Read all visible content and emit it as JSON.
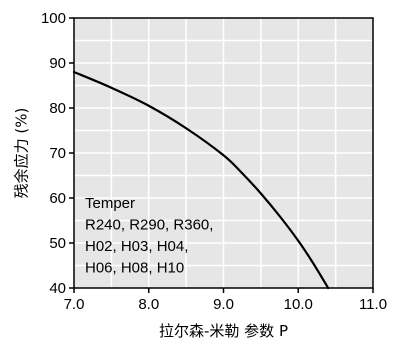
{
  "chart_data": {
    "type": "line",
    "xlabel": "拉尔森-米勒 参数 P",
    "ylabel": "残余应力 (%)",
    "xlim": [
      7.0,
      11.0
    ],
    "ylim": [
      40,
      100
    ],
    "x_ticks": [
      "7.0",
      "8.0",
      "9.0",
      "10.0",
      "11.0"
    ],
    "y_ticks": [
      "40",
      "50",
      "60",
      "70",
      "80",
      "90",
      "100"
    ],
    "x_grid_step": 0.5,
    "y_grid_step": 5,
    "grid": true,
    "legend_lines": [
      "Temper",
      "R240, R290, R360,",
      "H02, H03, H04,",
      "H06, H08, H10"
    ],
    "legend_position": "bottom-left",
    "series": [
      {
        "color": "#000000",
        "x": [
          7.0,
          7.5,
          8.0,
          8.5,
          9.0,
          9.25,
          9.5,
          9.75,
          10.0,
          10.2,
          10.4
        ],
        "y": [
          88.0,
          84.5,
          80.5,
          75.5,
          69.5,
          65.5,
          61.0,
          56.0,
          50.5,
          45.5,
          40.0
        ]
      }
    ],
    "colors": {
      "plot_background": "#e6e6e6",
      "grid": "#ffffff",
      "line": "#000000"
    }
  }
}
